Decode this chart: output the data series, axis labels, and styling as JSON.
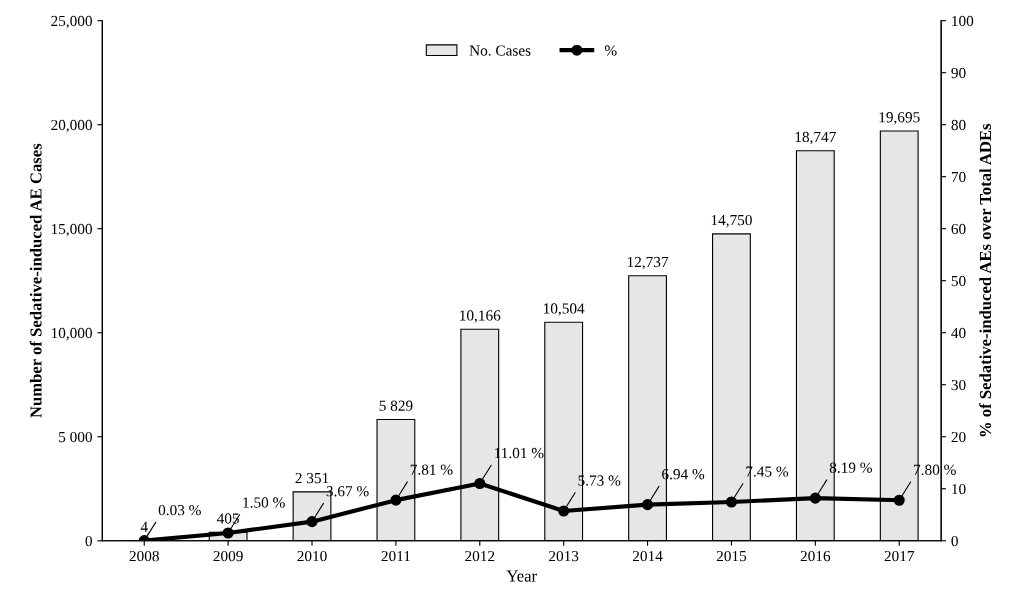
{
  "chart_data": {
    "type": "bar",
    "categories": [
      "2008",
      "2009",
      "2010",
      "2011",
      "2012",
      "2013",
      "2014",
      "2015",
      "2016",
      "2017"
    ],
    "series": [
      {
        "name": "No. Cases",
        "color": "#e6e6e6",
        "values": [
          4,
          405,
          2351,
          5829,
          10166,
          10504,
          12737,
          14750,
          18747,
          19695
        ],
        "value_labels": [
          "4",
          "405",
          "2 351",
          "5 829",
          "10,166",
          "10,504",
          "12,737",
          "14,750",
          "18,747",
          "19,695"
        ]
      },
      {
        "name": "%",
        "type": "line",
        "axis": "y2",
        "color": "#000000",
        "values": [
          0.03,
          1.5,
          3.67,
          7.81,
          11.01,
          5.73,
          6.94,
          7.45,
          8.19,
          7.8
        ],
        "value_labels": [
          "0.03 %",
          "1.50 %",
          "3.67 %",
          "7.81 %",
          "11.01 %",
          "5.73 %",
          "6.94 %",
          "7.45 %",
          "8.19 %",
          "7.80 %"
        ]
      }
    ],
    "xlabel": "Year",
    "ylabel": "Number of Sedative-induced AE Cases",
    "y2label": "% of Sedative-induced AEs over Total ADEs",
    "ylim": [
      0,
      25000
    ],
    "yticks": [
      0,
      {
        "value": 5000,
        "label": "5 000"
      },
      {
        "value": 10000,
        "label": "10,000"
      },
      {
        "value": 15000,
        "label": "15,000"
      },
      {
        "value": 20000,
        "label": "20,000"
      },
      {
        "value": 25000,
        "label": "25,000"
      }
    ],
    "y2lim": [
      0,
      100
    ],
    "y2ticks": [
      0,
      10,
      20,
      30,
      40,
      50,
      60,
      70,
      80,
      90,
      100
    ],
    "legend": "top",
    "marker": "circle",
    "line_style": "solid"
  }
}
